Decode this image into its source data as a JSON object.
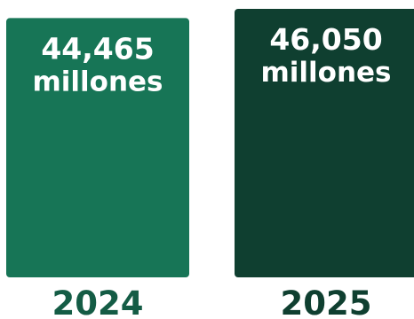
{
  "chart_data": {
    "type": "bar",
    "categories": [
      "2024",
      "2025"
    ],
    "values": [
      44465,
      46050
    ],
    "value_labels": [
      "44,465",
      "46,050"
    ],
    "unit_label": "millones",
    "bar_colors": [
      "#177556",
      "#0f3f30"
    ],
    "label_colors": [
      "#145c45",
      "#0f3f30"
    ],
    "grid": false,
    "legend": "none"
  }
}
